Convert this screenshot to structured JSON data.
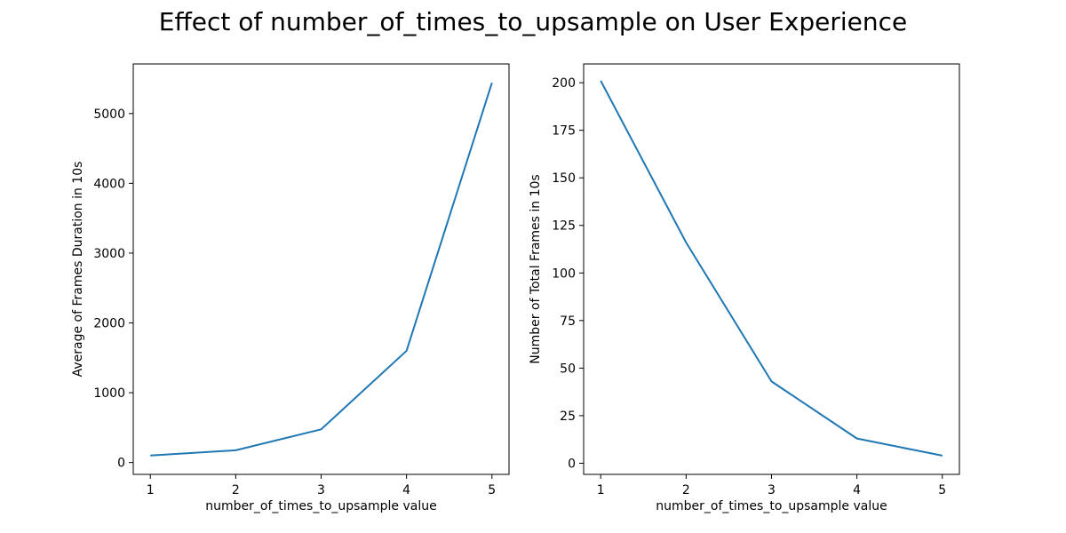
{
  "figure": {
    "title": "Effect of number_of_times_to_upsample on User Experience"
  },
  "colors": {
    "series": "#1f77b4",
    "axes": "#000000",
    "background": "#ffffff"
  },
  "chart_data": [
    {
      "type": "line",
      "title": "",
      "xlabel": "number_of_times_to_upsample value",
      "ylabel": "Average of Frames Duration in 10s",
      "x": [
        1,
        2,
        3,
        4,
        5
      ],
      "xticks": [
        1,
        2,
        3,
        4,
        5
      ],
      "xlim": [
        0.8,
        5.2
      ],
      "yticks": [
        0,
        1000,
        2000,
        3000,
        4000,
        5000
      ],
      "ylim": [
        -170,
        5710
      ],
      "grid": false,
      "series": [
        {
          "values": [
            100,
            175,
            475,
            1600,
            5440
          ]
        }
      ]
    },
    {
      "type": "line",
      "title": "",
      "xlabel": "number_of_times_to_upsample value",
      "ylabel": "Number of Total Frames in 10s",
      "x": [
        1,
        2,
        3,
        4,
        5
      ],
      "xticks": [
        1,
        2,
        3,
        4,
        5
      ],
      "xlim": [
        0.8,
        5.2
      ],
      "yticks": [
        0,
        25,
        50,
        75,
        100,
        125,
        150,
        175,
        200
      ],
      "ylim": [
        -5.85,
        209.85
      ],
      "grid": false,
      "series": [
        {
          "values": [
            201,
            116,
            43,
            13,
            4
          ]
        }
      ]
    }
  ]
}
